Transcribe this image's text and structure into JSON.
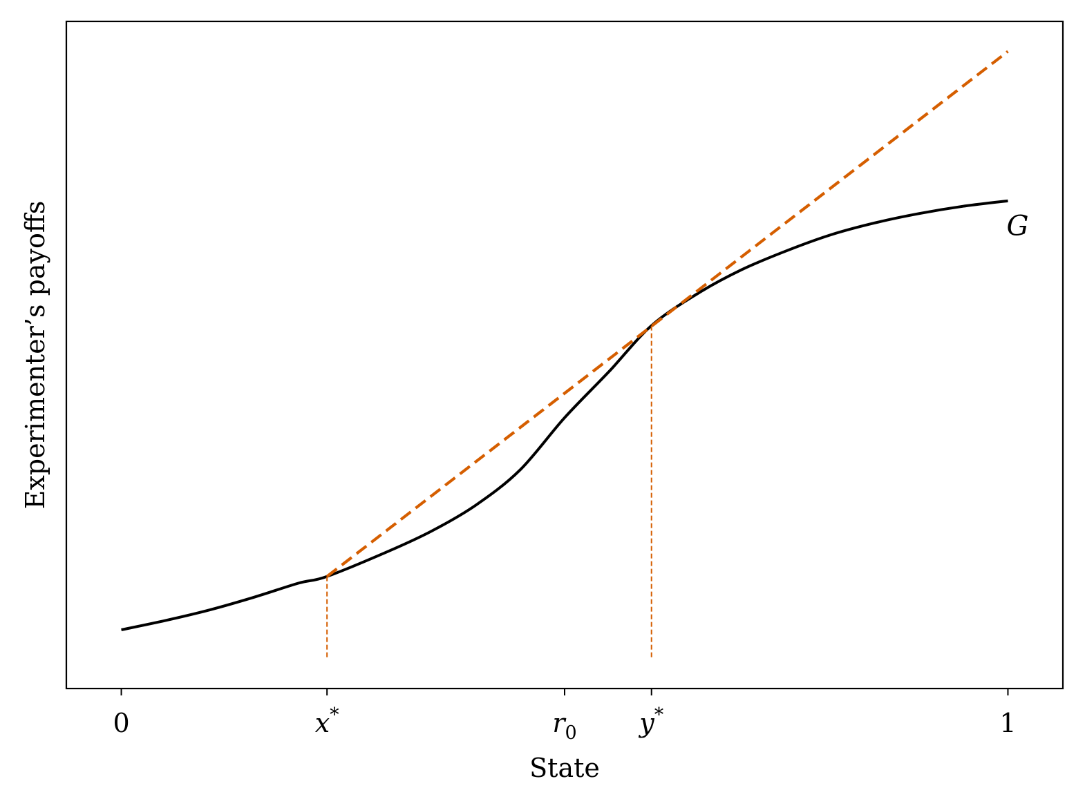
{
  "chart_data": {
    "type": "line",
    "title": "",
    "xlabel": "State",
    "ylabel": "Experimenter’s payoffs",
    "xlim": [
      -0.062,
      1.062
    ],
    "ylim": [
      0.0,
      1.0
    ],
    "grid": false,
    "x_ticks": [
      {
        "value": 0.0,
        "label": "0",
        "base": "0",
        "sub": "",
        "sup": "",
        "italic": false
      },
      {
        "value": 0.232,
        "label": "x*",
        "base": "x",
        "sub": "",
        "sup": "*",
        "italic": true
      },
      {
        "value": 0.5,
        "label": "r0",
        "base": "r",
        "sub": "0",
        "sup": "",
        "italic": true
      },
      {
        "value": 0.598,
        "label": "y*",
        "base": "y",
        "sub": "",
        "sup": "*",
        "italic": true
      },
      {
        "value": 1.0,
        "label": "1",
        "base": "1",
        "sub": "",
        "sup": "",
        "italic": false
      }
    ],
    "series": [
      {
        "name": "G",
        "style": "solid",
        "color": "#000000",
        "x": [
          0.0,
          0.05,
          0.1,
          0.15,
          0.2,
          0.232,
          0.3,
          0.35,
          0.4,
          0.45,
          0.5,
          0.55,
          0.598,
          0.65,
          0.7,
          0.75,
          0.8,
          0.85,
          0.9,
          0.95,
          1.0
        ],
        "y": [
          0.088,
          0.102,
          0.118,
          0.137,
          0.158,
          0.168,
          0.205,
          0.236,
          0.275,
          0.328,
          0.406,
          0.475,
          0.544,
          0.592,
          0.628,
          0.656,
          0.68,
          0.698,
          0.712,
          0.723,
          0.731
        ]
      },
      {
        "name": "",
        "style": "dashed",
        "color": "#d55e00",
        "x": [
          0.232,
          1.0
        ],
        "y": [
          0.168,
          0.955
        ]
      }
    ],
    "guides": [
      {
        "x": 0.232,
        "y_from": 0.047,
        "y_to": 0.168,
        "color": "#d55e00",
        "style": "dashed"
      },
      {
        "x": 0.598,
        "y_from": 0.047,
        "y_to": 0.544,
        "color": "#d55e00",
        "style": "dashed"
      }
    ],
    "annotations": [
      {
        "text": "G",
        "x": 1.0,
        "y": 0.694,
        "italic": true
      }
    ]
  }
}
